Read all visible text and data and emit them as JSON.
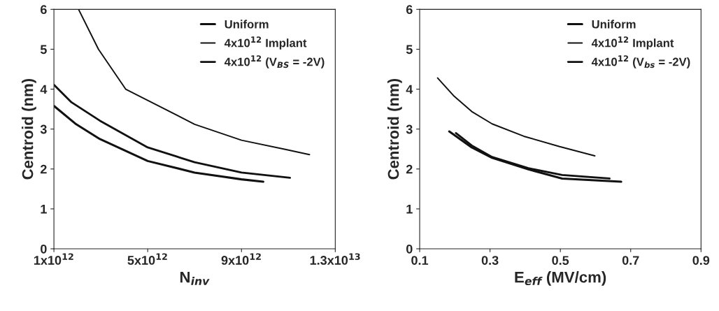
{
  "chart_data": [
    {
      "type": "line",
      "xlabel": "N$_{inv}$",
      "ylabel": "Centroid (nm)",
      "xlim": [
        1000000000000.0,
        13000000000000.0
      ],
      "ylim": [
        0,
        6
      ],
      "xticks": [
        {
          "value": 1000000000000.0,
          "label": "1x10$^{12}$"
        },
        {
          "value": 5000000000000.0,
          "label": "5x10$^{12}$"
        },
        {
          "value": 9000000000000.0,
          "label": "9x10$^{12}$"
        },
        {
          "value": 13000000000000.0,
          "label": "1.3x10$^{13}$"
        }
      ],
      "yticks": [
        0,
        1,
        2,
        3,
        4,
        5,
        6
      ],
      "grid": false,
      "legend": "top right",
      "series": [
        {
          "name": "Uniform",
          "color": "#111111",
          "x": [
            1000000000000.0,
            1950000000000.0,
            2960000000000.0,
            5000000000000.0,
            7000000000000.0,
            9000000000000.0,
            9930000000000.0
          ],
          "values": [
            3.58,
            3.12,
            2.75,
            2.2,
            1.91,
            1.74,
            1.68
          ]
        },
        {
          "name": "4x10$^{12}$ Implant",
          "color": "#111111",
          "x": [
            2050000000000.0,
            2900000000000.0,
            4060000000000.0,
            5000000000000.0,
            7000000000000.0,
            9000000000000.0,
            10800000000000.0,
            11900000000000.0
          ],
          "values": [
            6.0,
            5.0,
            4.0,
            3.72,
            3.12,
            2.72,
            2.5,
            2.36
          ]
        },
        {
          "name": "4x10$^{12}$ (V$_{BS}$ = -2V)",
          "color": "#111111",
          "x": [
            1000000000000.0,
            1750000000000.0,
            2960000000000.0,
            5000000000000.0,
            7000000000000.0,
            9000000000000.0,
            11070000000000.0
          ],
          "values": [
            4.11,
            3.67,
            3.21,
            2.54,
            2.17,
            1.91,
            1.78
          ]
        }
      ]
    },
    {
      "type": "line",
      "xlabel": "E$_{eff}$ (MV/cm)",
      "ylabel": "Centroid (nm)",
      "xlim": [
        0.1,
        0.9
      ],
      "ylim": [
        0,
        6
      ],
      "xticks": [
        0.1,
        0.3,
        0.5,
        0.7,
        0.9
      ],
      "yticks": [
        0,
        1,
        2,
        3,
        4,
        5,
        6
      ],
      "grid": false,
      "legend": "top right",
      "series": [
        {
          "name": "Uniform",
          "color": "#111111",
          "x": [
            0.184,
            0.248,
            0.306,
            0.409,
            0.505,
            0.673
          ],
          "values": [
            2.94,
            2.54,
            2.28,
            1.99,
            1.76,
            1.68
          ]
        },
        {
          "name": "4x10$^{12}$ Implant",
          "color": "#111111",
          "x": [
            0.151,
            0.196,
            0.248,
            0.306,
            0.396,
            0.498,
            0.598
          ],
          "values": [
            4.28,
            3.84,
            3.44,
            3.13,
            2.82,
            2.56,
            2.33
          ]
        },
        {
          "name": "4x10$^{12}$ (V$_{bs}$ = -2V)",
          "color": "#111111",
          "x": [
            0.203,
            0.248,
            0.306,
            0.409,
            0.505,
            0.64
          ],
          "values": [
            2.9,
            2.59,
            2.3,
            2.02,
            1.85,
            1.76
          ]
        }
      ]
    }
  ]
}
